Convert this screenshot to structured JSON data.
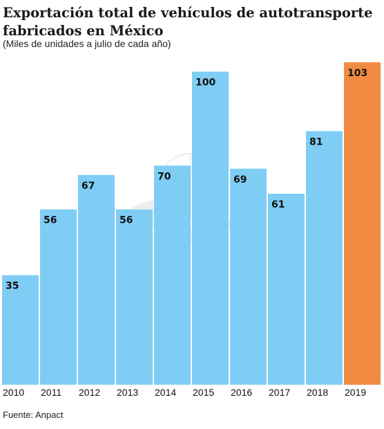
{
  "header": {
    "title_line1": "Exportación total de vehículos de autotransporte",
    "title_line2": "fabricados en México",
    "subtitle": "(Miles de unidades a julio de cada año)"
  },
  "footer": {
    "source": "Fuente: Anpact"
  },
  "chart_data": {
    "type": "bar",
    "title": "Exportación total de vehículos de autotransporte fabricados en México",
    "subtitle": "(Miles de unidades a julio de cada año)",
    "categories": [
      "2010",
      "2011",
      "2012",
      "2013",
      "2014",
      "2015",
      "2016",
      "2017",
      "2018",
      "2019"
    ],
    "values": [
      35,
      56,
      67,
      56,
      70,
      100,
      69,
      61,
      81,
      103
    ],
    "data_labels": [
      "35",
      "56",
      "67",
      "56",
      "70",
      "100",
      "69",
      "61",
      "81",
      "103"
    ],
    "colors": {
      "default": "#7fcdf5",
      "highlight": "#f28b42",
      "highlight_category": "2019"
    },
    "xlabel": "",
    "ylabel": "",
    "ylim": [
      0,
      103
    ],
    "grid": false,
    "legend": "none"
  }
}
